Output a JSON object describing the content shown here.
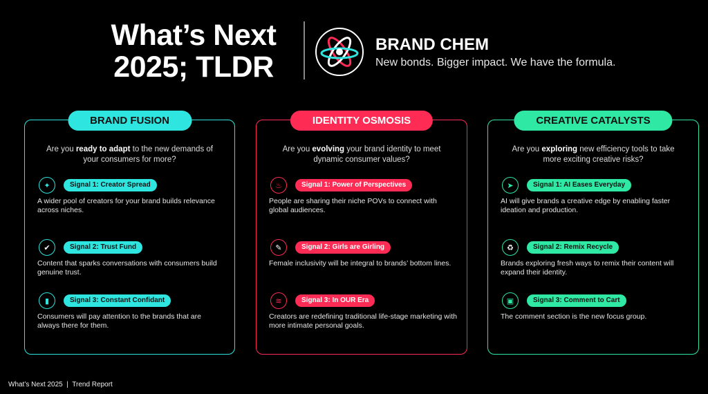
{
  "header": {
    "title_line1": "What’s Next",
    "title_line2": "2025; TLDR",
    "brand": "BRAND CHEM",
    "tagline": "New bonds. Bigger impact. We have the formula.",
    "logo_icon": "atom-icon"
  },
  "columns": [
    {
      "title": "BRAND FUSION",
      "color": "#2ee6df",
      "pill_text_color": "#111111",
      "question_pre": "Are you ",
      "question_bold": "ready to adapt",
      "question_post": " to the new demands of your consumers for more?",
      "signals": [
        {
          "label": "Signal 1: Creator Spread",
          "icon": "rocket-icon",
          "glyph": "✦",
          "desc": "A wider pool of creators for your brand builds relevance across niches."
        },
        {
          "label": "Signal 2: Trust Fund",
          "icon": "shield-check-icon",
          "glyph": "✔",
          "desc": "Content that sparks conversations with consumers build genuine trust."
        },
        {
          "label": "Signal 3: Constant Confidant",
          "icon": "phone-icon",
          "glyph": "▮",
          "desc": "Consumers will pay attention to the brands that are always there for them."
        }
      ]
    },
    {
      "title": "IDENTITY OSMOSIS",
      "color": "#fe2c55",
      "pill_text_color": "#ffffff",
      "question_pre": "Are you ",
      "question_bold": "evolving",
      "question_post": " your brand identity to meet dynamic consumer values?",
      "signals": [
        {
          "label": "Signal 1: Power of Perspectives",
          "icon": "flame-icon",
          "glyph": "♨",
          "desc": "People are sharing their niche POVs to connect with global audiences."
        },
        {
          "label": "Signal 2: Girls are Girling",
          "icon": "lipstick-icon",
          "glyph": "✎",
          "desc": "Female inclusivity will be integral to brands’ bottom lines."
        },
        {
          "label": "Signal 3: In OUR Era",
          "icon": "stack-icon",
          "glyph": "≋",
          "desc": "Creators are redefining traditional life-stage marketing with more intimate personal goals."
        }
      ]
    },
    {
      "title": "CREATIVE CATALYSTS",
      "color": "#2ee8a4",
      "pill_text_color": "#111111",
      "question_pre": "Are you ",
      "question_bold": "exploring",
      "question_post": " new efficiency tools to take more exciting creative risks?",
      "signals": [
        {
          "label": "Signal 1: AI Eases Everyday",
          "icon": "cursor-icon",
          "glyph": "➤",
          "desc": "AI will give brands a creative edge by enabling faster ideation and production."
        },
        {
          "label": "Signal 2: Remix Recycle",
          "icon": "remix-icon",
          "glyph": "♻",
          "desc": "Brands exploring fresh ways to remix their content will expand their identity."
        },
        {
          "label": "Signal 3: Comment to Cart",
          "icon": "comment-cart-icon",
          "glyph": "▣",
          "desc": "The comment section is the new focus group."
        }
      ]
    }
  ],
  "footer": {
    "text": "What’s Next 2025  |  Trend Report"
  }
}
